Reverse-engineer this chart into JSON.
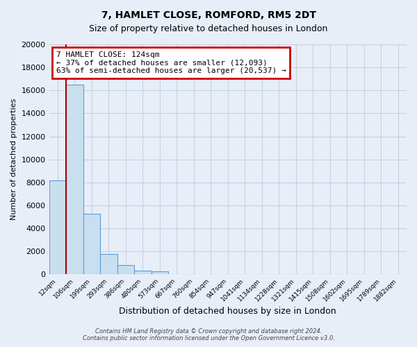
{
  "title": "7, HAMLET CLOSE, ROMFORD, RM5 2DT",
  "subtitle": "Size of property relative to detached houses in London",
  "xlabel": "Distribution of detached houses by size in London",
  "ylabel": "Number of detached properties",
  "bar_labels": [
    "12sqm",
    "106sqm",
    "199sqm",
    "293sqm",
    "386sqm",
    "480sqm",
    "573sqm",
    "667sqm",
    "760sqm",
    "854sqm",
    "947sqm",
    "1041sqm",
    "1134sqm",
    "1228sqm",
    "1321sqm",
    "1415sqm",
    "1508sqm",
    "1602sqm",
    "1695sqm",
    "1789sqm",
    "1882sqm"
  ],
  "bar_values": [
    8200,
    16500,
    5300,
    1800,
    800,
    300,
    280,
    0,
    0,
    0,
    0,
    0,
    0,
    0,
    0,
    0,
    0,
    0,
    0,
    0,
    0
  ],
  "bar_color": "#c8dff0",
  "bar_edge_color": "#5b9bd5",
  "ylim": [
    0,
    20000
  ],
  "yticks": [
    0,
    2000,
    4000,
    6000,
    8000,
    10000,
    12000,
    14000,
    16000,
    18000,
    20000
  ],
  "property_line_color": "#aa0000",
  "annotation_title": "7 HAMLET CLOSE: 124sqm",
  "annotation_line1": "← 37% of detached houses are smaller (12,093)",
  "annotation_line2": "63% of semi-detached houses are larger (20,537) →",
  "annotation_box_color": "#ffffff",
  "annotation_box_edge": "#cc0000",
  "footer1": "Contains HM Land Registry data © Crown copyright and database right 2024.",
  "footer2": "Contains public sector information licensed under the Open Government Licence v3.0.",
  "bg_color": "#e8eef8",
  "grid_color": "#c8d0e0"
}
